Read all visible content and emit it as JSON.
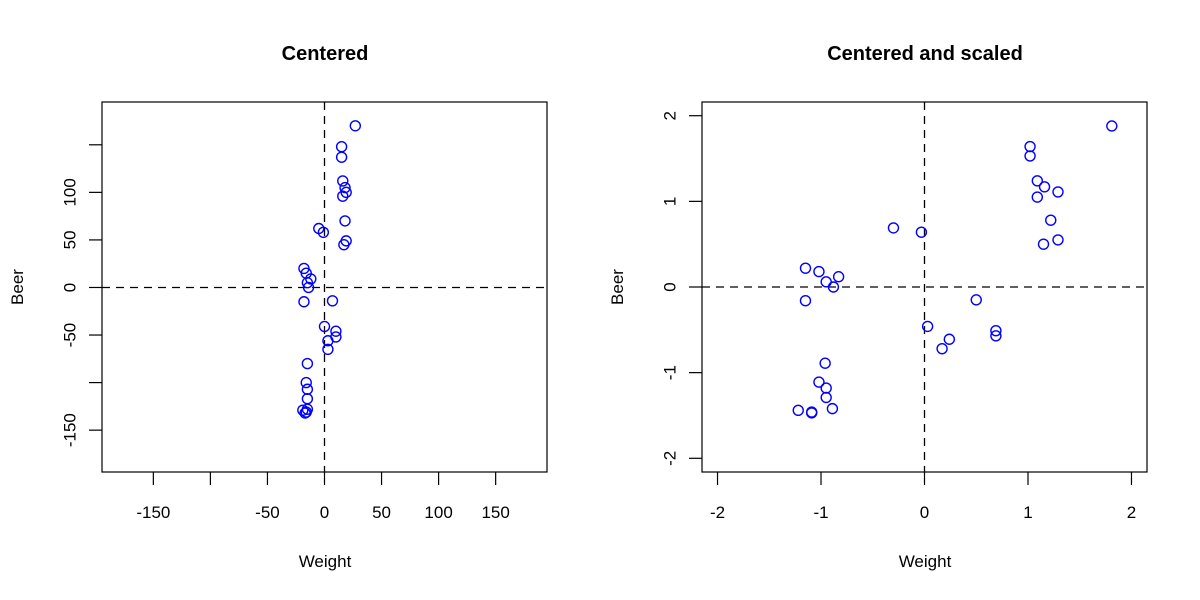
{
  "chart_data": [
    {
      "type": "scatter",
      "title": "Centered",
      "xlabel": "Weight",
      "ylabel": "Beer",
      "xlim": [
        -195,
        195
      ],
      "ylim": [
        -194,
        195
      ],
      "xticks": [
        -150,
        -100,
        -50,
        0,
        50,
        100,
        150
      ],
      "xtick_labels": [
        "-150",
        "",
        "-50",
        "0",
        "50",
        "100",
        "150"
      ],
      "yticks": [
        -150,
        -100,
        -50,
        0,
        50,
        100,
        150
      ],
      "ytick_labels": [
        "-150",
        "",
        "-50",
        "0",
        "50",
        "100",
        ""
      ],
      "reference_lines": {
        "x": 0,
        "y": 0,
        "style": "dashed"
      },
      "grid": false,
      "point_color": "#0000ff",
      "marker": "open-circle",
      "points": [
        [
          27,
          170
        ],
        [
          15,
          148
        ],
        [
          15,
          137
        ],
        [
          16,
          112
        ],
        [
          18,
          105
        ],
        [
          19,
          100
        ],
        [
          16,
          96
        ],
        [
          18,
          70
        ],
        [
          -5,
          62
        ],
        [
          -1,
          58
        ],
        [
          19,
          49
        ],
        [
          17,
          45
        ],
        [
          -18,
          20
        ],
        [
          -16,
          15
        ],
        [
          -12,
          9
        ],
        [
          -15,
          5
        ],
        [
          -14,
          0
        ],
        [
          -18,
          -15
        ],
        [
          7,
          -14
        ],
        [
          0,
          -41
        ],
        [
          10,
          -46
        ],
        [
          10,
          -52
        ],
        [
          3,
          -56
        ],
        [
          3,
          -65
        ],
        [
          -15,
          -80
        ],
        [
          -16,
          -100
        ],
        [
          -15,
          -107
        ],
        [
          -15,
          -117
        ],
        [
          -15,
          -128
        ],
        [
          -19,
          -129
        ],
        [
          -17,
          -132
        ],
        [
          -16,
          -131
        ]
      ],
      "x": [
        27,
        15,
        15,
        16,
        18,
        19,
        16,
        18,
        -5,
        -1,
        19,
        17,
        -18,
        -16,
        -12,
        -15,
        -14,
        -18,
        7,
        0,
        10,
        10,
        3,
        3,
        -15,
        -16,
        -15,
        -15,
        -15,
        -19,
        -17,
        -16
      ],
      "y": [
        170,
        148,
        137,
        112,
        105,
        100,
        96,
        70,
        62,
        58,
        49,
        45,
        20,
        15,
        9,
        5,
        0,
        -15,
        -14,
        -41,
        -46,
        -52,
        -56,
        -65,
        -80,
        -100,
        -107,
        -117,
        -128,
        -129,
        -132,
        -131
      ]
    },
    {
      "type": "scatter",
      "title": "Centered and scaled",
      "xlabel": "Weight",
      "ylabel": "Beer",
      "xlim": [
        -2.15,
        2.15
      ],
      "ylim": [
        -2.16,
        2.16
      ],
      "xticks": [
        -2,
        -1,
        0,
        1,
        2
      ],
      "xtick_labels": [
        "-2",
        "-1",
        "0",
        "1",
        "2"
      ],
      "yticks": [
        -2,
        -1,
        0,
        1,
        2
      ],
      "ytick_labels": [
        "-2",
        "-1",
        "0",
        "1",
        "2"
      ],
      "reference_lines": {
        "x": 0,
        "y": 0,
        "style": "dashed"
      },
      "grid": false,
      "point_color": "#0000ff",
      "marker": "open-circle",
      "points": [
        [
          1.81,
          1.88
        ],
        [
          1.02,
          1.64
        ],
        [
          1.02,
          1.53
        ],
        [
          1.09,
          1.24
        ],
        [
          1.16,
          1.17
        ],
        [
          1.29,
          1.11
        ],
        [
          1.09,
          1.05
        ],
        [
          1.22,
          0.78
        ],
        [
          1.29,
          0.55
        ],
        [
          1.15,
          0.5
        ],
        [
          -0.3,
          0.69
        ],
        [
          -0.03,
          0.64
        ],
        [
          -1.15,
          0.22
        ],
        [
          -1.02,
          0.18
        ],
        [
          -0.95,
          0.06
        ],
        [
          -0.88,
          0.0
        ],
        [
          -0.83,
          0.12
        ],
        [
          -1.15,
          -0.16
        ],
        [
          0.5,
          -0.15
        ],
        [
          0.03,
          -0.46
        ],
        [
          0.17,
          -0.72
        ],
        [
          0.24,
          -0.61
        ],
        [
          0.69,
          -0.51
        ],
        [
          0.69,
          -0.57
        ],
        [
          -0.96,
          -0.89
        ],
        [
          -1.02,
          -1.11
        ],
        [
          -0.95,
          -1.18
        ],
        [
          -0.95,
          -1.29
        ],
        [
          -1.22,
          -1.44
        ],
        [
          -1.09,
          -1.46
        ],
        [
          -1.09,
          -1.47
        ],
        [
          -0.89,
          -1.42
        ]
      ],
      "x": [
        1.81,
        1.02,
        1.02,
        1.09,
        1.16,
        1.29,
        1.09,
        1.22,
        1.29,
        1.15,
        -0.3,
        -0.03,
        -1.15,
        -1.02,
        -0.95,
        -0.88,
        -0.83,
        -1.15,
        0.5,
        0.03,
        0.17,
        0.24,
        0.69,
        0.69,
        -0.96,
        -1.02,
        -0.95,
        -0.95,
        -1.22,
        -1.09,
        -1.09,
        -0.89
      ],
      "y": [
        1.88,
        1.64,
        1.53,
        1.24,
        1.17,
        1.11,
        1.05,
        0.78,
        0.55,
        0.5,
        0.69,
        0.64,
        0.22,
        0.18,
        0.06,
        0.0,
        0.12,
        -0.16,
        -0.15,
        -0.46,
        -0.72,
        -0.61,
        -0.51,
        -0.57,
        -0.89,
        -1.11,
        -1.18,
        -1.29,
        -1.44,
        -1.46,
        -1.47,
        -1.42
      ]
    }
  ],
  "panels": [
    {
      "title": "Centered",
      "xlabel": "Weight",
      "ylabel": "Beer"
    },
    {
      "title": "Centered and scaled",
      "xlabel": "Weight",
      "ylabel": "Beer"
    }
  ]
}
